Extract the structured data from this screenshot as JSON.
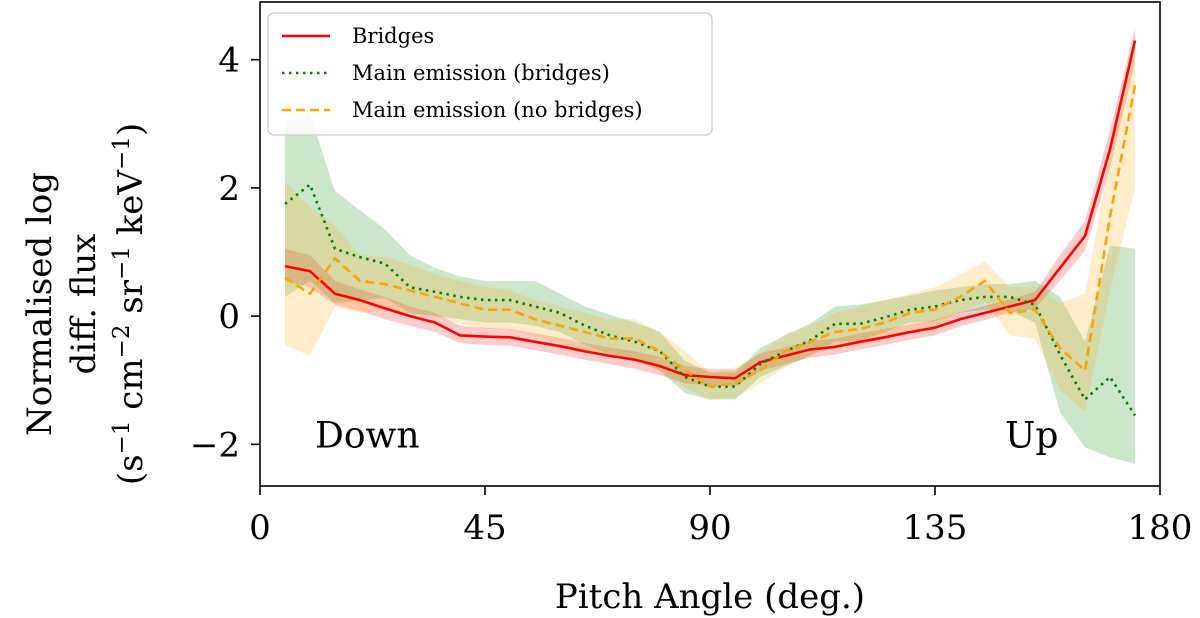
{
  "chart_data": {
    "type": "line",
    "xlabel": "Pitch Angle (deg.)",
    "ylabel_lines": [
      "Normalised log",
      "diff. flux"
    ],
    "ylabel_units": {
      "open": "(s",
      "s_exp": "−1",
      "cm_text": " cm",
      "cm_exp": "−2",
      "sr_text": " sr",
      "sr_exp": "−1",
      "kev_text": " keV",
      "kev_exp": "−1",
      "close": ")"
    },
    "xlim": [
      0,
      180
    ],
    "ylim": [
      -2.65,
      4.9
    ],
    "xticks": [
      0,
      45,
      90,
      135,
      180
    ],
    "yticks": [
      4,
      2,
      0,
      -2
    ],
    "ytick_labels": [
      "4",
      "2",
      "0",
      "−2"
    ],
    "legend_position": "top-left",
    "annotations": [
      {
        "text": "Down",
        "x": 11,
        "y": -2.05
      },
      {
        "text": "Up",
        "x": 149,
        "y": -2.05
      }
    ],
    "x": [
      5,
      10,
      15,
      20,
      25,
      30,
      35,
      40,
      45,
      50,
      55,
      60,
      65,
      70,
      75,
      80,
      85,
      90,
      95,
      100,
      105,
      110,
      115,
      120,
      125,
      130,
      135,
      140,
      145,
      150,
      155,
      160,
      165,
      170,
      175
    ],
    "series": [
      {
        "name": "Bridges",
        "color": "#ff0000",
        "dash": "solid",
        "values": [
          0.78,
          0.7,
          0.35,
          0.25,
          0.12,
          0.0,
          -0.1,
          -0.3,
          -0.32,
          -0.33,
          -0.4,
          -0.47,
          -0.55,
          -0.62,
          -0.68,
          -0.78,
          -0.92,
          -0.95,
          -0.97,
          -0.72,
          -0.62,
          -0.52,
          -0.48,
          -0.4,
          -0.33,
          -0.25,
          -0.18,
          -0.05,
          0.05,
          0.15,
          0.25,
          0.75,
          1.25,
          2.6,
          4.3
        ],
        "lower": [
          0.55,
          0.45,
          0.18,
          0.08,
          -0.05,
          -0.15,
          -0.25,
          -0.42,
          -0.45,
          -0.46,
          -0.53,
          -0.6,
          -0.68,
          -0.75,
          -0.82,
          -0.92,
          -1.05,
          -1.08,
          -1.1,
          -0.85,
          -0.75,
          -0.65,
          -0.6,
          -0.52,
          -0.45,
          -0.37,
          -0.3,
          -0.16,
          -0.06,
          0.05,
          0.12,
          0.55,
          1.02,
          2.3,
          3.95
        ],
        "upper": [
          1.05,
          0.95,
          0.55,
          0.42,
          0.3,
          0.15,
          0.05,
          -0.15,
          -0.18,
          -0.2,
          -0.27,
          -0.34,
          -0.42,
          -0.49,
          -0.55,
          -0.64,
          -0.78,
          -0.82,
          -0.84,
          -0.58,
          -0.49,
          -0.39,
          -0.35,
          -0.27,
          -0.2,
          -0.13,
          -0.06,
          0.06,
          0.16,
          0.26,
          0.38,
          0.95,
          1.48,
          2.9,
          4.5
        ]
      },
      {
        "name": "Main emission (bridges)",
        "color": "#008000",
        "dash": "dotted",
        "values": [
          1.75,
          2.05,
          1.05,
          0.92,
          0.82,
          0.45,
          0.38,
          0.3,
          0.25,
          0.25,
          0.15,
          0.05,
          -0.15,
          -0.3,
          -0.4,
          -0.55,
          -0.95,
          -1.1,
          -1.1,
          -0.75,
          -0.55,
          -0.38,
          -0.12,
          -0.12,
          -0.02,
          0.1,
          0.15,
          0.25,
          0.3,
          0.3,
          0.18,
          -0.6,
          -1.3,
          -0.95,
          -1.55
        ],
        "lower": [
          0.3,
          0.55,
          0.2,
          0.25,
          0.28,
          0.05,
          0.0,
          -0.05,
          -0.1,
          -0.1,
          -0.15,
          -0.25,
          -0.45,
          -0.6,
          -0.7,
          -0.85,
          -1.2,
          -1.3,
          -1.3,
          -0.95,
          -0.78,
          -0.62,
          -0.4,
          -0.38,
          -0.25,
          -0.1,
          -0.08,
          0.05,
          0.1,
          0.08,
          -0.1,
          -1.5,
          -2.05,
          -2.2,
          -2.3
        ],
        "upper": [
          3.05,
          3.15,
          1.95,
          1.65,
          1.35,
          0.95,
          0.75,
          0.62,
          0.55,
          0.55,
          0.55,
          0.35,
          0.15,
          0.02,
          -0.1,
          -0.25,
          -0.7,
          -0.88,
          -0.88,
          -0.5,
          -0.3,
          -0.12,
          0.15,
          0.18,
          0.25,
          0.32,
          0.4,
          0.45,
          0.5,
          0.5,
          0.55,
          0.3,
          -0.4,
          1.1,
          1.05
        ]
      },
      {
        "name": "Main emission (no bridges)",
        "color": "#ffa500",
        "dash": "dashed",
        "values": [
          0.6,
          0.35,
          0.9,
          0.55,
          0.5,
          0.4,
          0.3,
          0.2,
          0.1,
          0.1,
          -0.05,
          -0.15,
          -0.25,
          -0.35,
          -0.35,
          -0.55,
          -0.85,
          -1.1,
          -1.05,
          -0.85,
          -0.55,
          -0.4,
          -0.25,
          -0.2,
          -0.1,
          0.05,
          0.1,
          0.3,
          0.55,
          0.05,
          0.1,
          -0.5,
          -0.85,
          1.55,
          3.6
        ],
        "lower": [
          -0.45,
          -0.62,
          0.15,
          0.05,
          0.08,
          0.05,
          -0.02,
          -0.12,
          -0.2,
          -0.22,
          -0.32,
          -0.42,
          -0.55,
          -0.62,
          -0.65,
          -0.85,
          -1.12,
          -1.3,
          -1.28,
          -1.05,
          -0.8,
          -0.62,
          -0.48,
          -0.45,
          -0.35,
          -0.22,
          -0.18,
          0.05,
          0.22,
          -0.3,
          -0.35,
          -1.15,
          -1.5,
          0.4,
          2.0
        ],
        "upper": [
          2.1,
          1.7,
          1.4,
          0.95,
          0.92,
          0.8,
          0.65,
          0.55,
          0.45,
          0.4,
          0.25,
          0.15,
          0.05,
          -0.05,
          -0.05,
          -0.25,
          -0.55,
          -0.88,
          -0.8,
          -0.6,
          -0.28,
          -0.15,
          0.05,
          0.15,
          0.25,
          0.35,
          0.45,
          0.65,
          0.85,
          0.45,
          0.45,
          0.2,
          0.35,
          2.45,
          4.3
        ]
      }
    ]
  }
}
